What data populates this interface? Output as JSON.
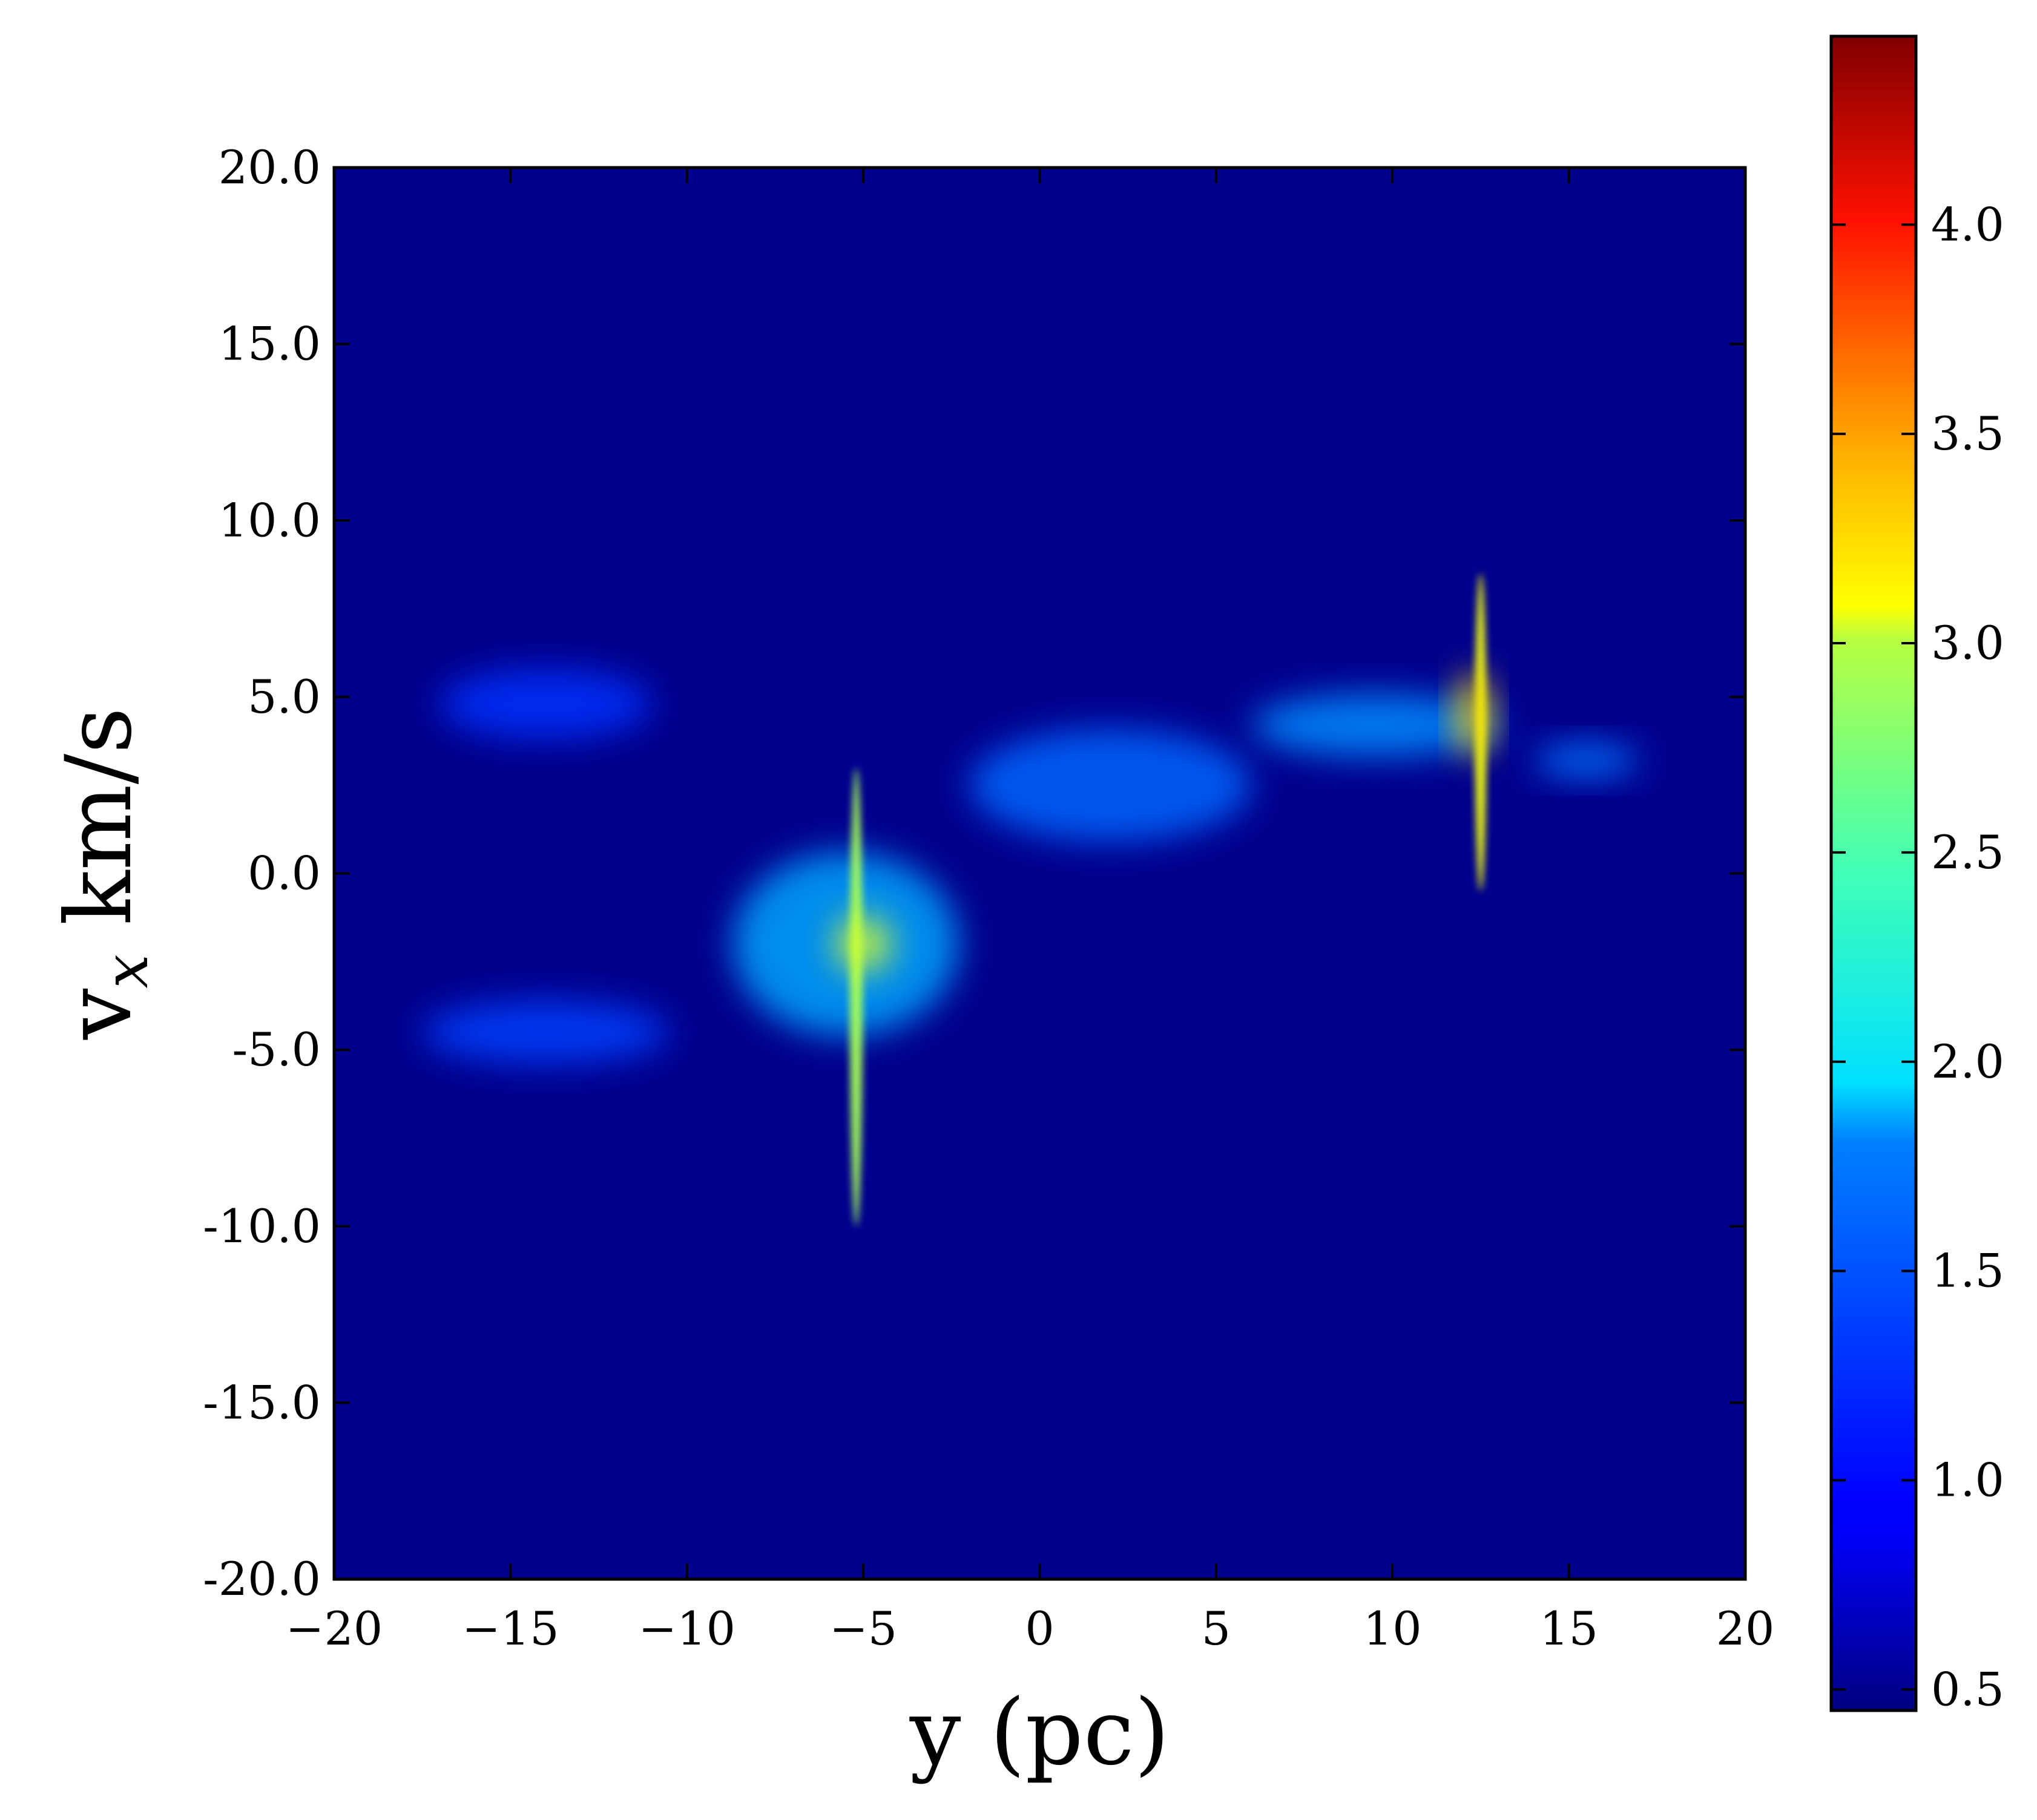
{
  "chart_data": {
    "type": "heatmap",
    "xlabel": "y (pc)",
    "ylabel_main": "v",
    "ylabel_sub": "x",
    "ylabel_unit": "km/s",
    "xlim": [
      -20,
      20
    ],
    "ylim": [
      -20,
      20
    ],
    "x_ticks": [
      -20,
      -15,
      -10,
      -5,
      0,
      5,
      10,
      15,
      20
    ],
    "x_tick_labels": [
      "−20",
      "−15",
      "−10",
      "−5",
      "0",
      "5",
      "10",
      "15",
      "20"
    ],
    "y_ticks": [
      20,
      15,
      10,
      5,
      0,
      -5,
      -10,
      -15,
      -20
    ],
    "y_tick_labels": [
      "20.0",
      "15.0",
      "10.0",
      "5.0",
      "0.0",
      "-5.0",
      "-10.0",
      "-15.0",
      "-20.0"
    ],
    "colorbar": {
      "colormap": "jet",
      "range": [
        0.45,
        4.45
      ],
      "ticks": [
        0.5,
        1.0,
        1.5,
        2.0,
        2.5,
        3.0,
        3.5,
        4.0
      ],
      "tick_labels": [
        "0.5",
        "1.0",
        "1.5",
        "2.0",
        "2.5",
        "3.0",
        "3.5",
        "4.0"
      ]
    },
    "background_value": 0.5,
    "features": [
      {
        "name": "main-cloud",
        "x": -5.5,
        "y": -2.0,
        "sx": 3.2,
        "sy": 2.6,
        "value": 1.6
      },
      {
        "name": "left-arm-lower",
        "x": -14.0,
        "y": -4.5,
        "sx": 3.5,
        "sy": 0.9,
        "value": 1.2
      },
      {
        "name": "left-arm-upper",
        "x": -14.0,
        "y": 4.8,
        "sx": 3.0,
        "sy": 1.0,
        "value": 1.15
      },
      {
        "name": "central-ridge",
        "x": 2.0,
        "y": 2.5,
        "sx": 4.0,
        "sy": 1.6,
        "value": 1.35
      },
      {
        "name": "right-stream",
        "x": 9.5,
        "y": 4.2,
        "sx": 3.5,
        "sy": 0.9,
        "value": 1.5
      },
      {
        "name": "right-tail",
        "x": 15.5,
        "y": 3.2,
        "sx": 1.5,
        "sy": 0.5,
        "value": 1.4
      },
      {
        "name": "filament-a",
        "x": -5.2,
        "y": -3.5,
        "sx": 0.18,
        "sy": 6.5,
        "value": 2.6
      },
      {
        "name": "filament-b",
        "x": 12.5,
        "y": 4.0,
        "sx": 0.16,
        "sy": 4.5,
        "value": 2.9
      },
      {
        "name": "core-a",
        "x": -5.0,
        "y": -2.0,
        "sx": 0.8,
        "sy": 0.8,
        "value": 2.8
      },
      {
        "name": "core-b",
        "x": 12.3,
        "y": 4.5,
        "sx": 0.5,
        "sy": 1.2,
        "value": 3.1
      }
    ]
  }
}
